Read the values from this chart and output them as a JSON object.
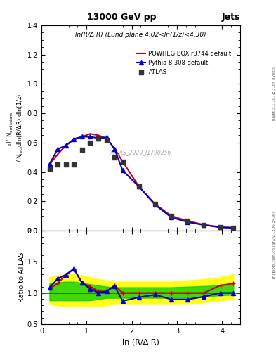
{
  "title": "13000 GeV pp",
  "title_right": "Jets",
  "annotation": "ln(R/Δ R) (Lund plane 4.02<ln(1/z)<4.30)",
  "watermark": "ATLAS_2020_I1790256",
  "right_label_top": "Rivet 3.1.10, ≥ 3.3M events",
  "right_label_bot": "mcplots.cern.ch [arXiv:1306.3436]",
  "ylabel_main": "d$^2$ N$_{emissions}$\n/ N$_{jets}$dln(R/ΔR) dln(1/z)",
  "ylabel_ratio": "Ratio to ATLAS",
  "xlabel": "ln (R/Δ R)",
  "ylim_main": [
    0.0,
    1.4
  ],
  "ylim_ratio": [
    0.5,
    2.0
  ],
  "xlim": [
    0.0,
    4.4
  ],
  "atlas_x": [
    0.18,
    0.36,
    0.54,
    0.72,
    0.9,
    1.08,
    1.26,
    1.44,
    1.62,
    1.8,
    2.16,
    2.52,
    2.88,
    3.24,
    3.6,
    3.96,
    4.25
  ],
  "atlas_y": [
    0.42,
    0.45,
    0.45,
    0.45,
    0.55,
    0.6,
    0.63,
    0.62,
    0.5,
    0.47,
    0.3,
    0.18,
    0.1,
    0.065,
    0.04,
    0.025,
    0.02
  ],
  "powheg_x": [
    0.18,
    0.36,
    0.54,
    0.72,
    0.9,
    1.08,
    1.26,
    1.44,
    1.62,
    1.8,
    2.16,
    2.52,
    2.88,
    3.24,
    3.6,
    3.96,
    4.25
  ],
  "powheg_y": [
    0.45,
    0.52,
    0.58,
    0.62,
    0.64,
    0.66,
    0.65,
    0.63,
    0.56,
    0.47,
    0.3,
    0.18,
    0.1,
    0.065,
    0.04,
    0.025,
    0.02
  ],
  "pythia_x": [
    0.18,
    0.36,
    0.54,
    0.72,
    0.9,
    1.08,
    1.26,
    1.44,
    1.62,
    1.8,
    2.16,
    2.52,
    2.88,
    3.24,
    3.6,
    3.96,
    4.25
  ],
  "pythia_y": [
    0.455,
    0.555,
    0.58,
    0.625,
    0.64,
    0.64,
    0.63,
    0.635,
    0.555,
    0.41,
    0.3,
    0.175,
    0.09,
    0.058,
    0.038,
    0.022,
    0.019
  ],
  "powheg_ratio": [
    1.07,
    1.15,
    1.29,
    1.38,
    1.16,
    1.1,
    1.03,
    1.02,
    1.12,
    1.0,
    1.0,
    1.0,
    1.0,
    1.0,
    1.0,
    1.12,
    1.15
  ],
  "pythia_ratio": [
    1.08,
    1.23,
    1.29,
    1.39,
    1.16,
    1.067,
    1.0,
    1.025,
    1.11,
    0.87,
    0.93,
    0.97,
    0.895,
    0.895,
    0.94,
    1.0,
    1.0
  ],
  "band_yellow_lo": [
    0.82,
    0.8,
    0.78,
    0.78,
    0.78,
    0.78,
    0.78,
    0.8,
    0.82,
    0.82,
    0.82,
    0.82,
    0.82,
    0.82,
    0.85,
    0.88,
    0.9
  ],
  "band_yellow_hi": [
    1.25,
    1.28,
    1.3,
    1.3,
    1.28,
    1.25,
    1.22,
    1.2,
    1.18,
    1.18,
    1.18,
    1.18,
    1.18,
    1.2,
    1.22,
    1.25,
    1.3
  ],
  "band_green_lo": [
    0.88,
    0.88,
    0.88,
    0.88,
    0.88,
    0.88,
    0.9,
    0.92,
    0.92,
    0.92,
    0.92,
    0.92,
    0.92,
    0.92,
    0.94,
    0.96,
    0.97
  ],
  "band_green_hi": [
    1.15,
    1.17,
    1.18,
    1.18,
    1.16,
    1.14,
    1.12,
    1.1,
    1.09,
    1.09,
    1.09,
    1.09,
    1.09,
    1.1,
    1.11,
    1.12,
    1.14
  ],
  "color_atlas": "#333333",
  "color_powheg": "#cc0000",
  "color_pythia": "#0000cc",
  "color_yellow": "#ffff00",
  "color_green": "#00cc00",
  "color_ref_line": "#007700"
}
